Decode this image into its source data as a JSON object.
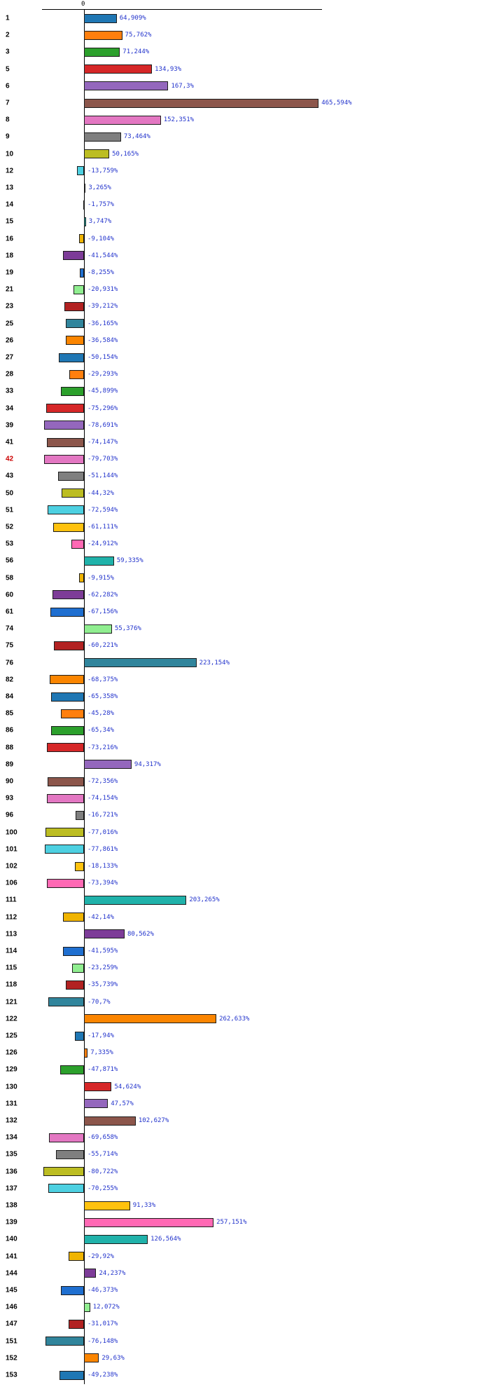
{
  "chart": {
    "background": "#ffffff",
    "axis_color": "#000000",
    "value_label_color": "#2233cc",
    "row_label_color": "#000000",
    "highlight_label_color": "#cc0000"
  },
  "chart_data": {
    "type": "bar",
    "orientation": "horizontal",
    "title": "",
    "xlabel": "",
    "ylabel": "",
    "value_unit": "%",
    "x_axis_ticks": [
      "0"
    ],
    "xlim": [
      -100,
      500
    ],
    "grid": false,
    "legend": false,
    "highlighted_labels": [
      "42"
    ],
    "rows": [
      {
        "label": "1",
        "value": 64.909,
        "display": "64,909%",
        "color": "#1f77b4",
        "highlight": false
      },
      {
        "label": "2",
        "value": 75.762,
        "display": "75,762%",
        "color": "#ff7f0e",
        "highlight": false
      },
      {
        "label": "3",
        "value": 71.244,
        "display": "71,244%",
        "color": "#2ca02c",
        "highlight": false
      },
      {
        "label": "5",
        "value": 134.93,
        "display": "134,93%",
        "color": "#d62728",
        "highlight": false
      },
      {
        "label": "6",
        "value": 167.3,
        "display": "167,3%",
        "color": "#9467bd",
        "highlight": false
      },
      {
        "label": "7",
        "value": 465.594,
        "display": "465,594%",
        "color": "#8c564b",
        "highlight": false
      },
      {
        "label": "8",
        "value": 152.351,
        "display": "152,351%",
        "color": "#e377c2",
        "highlight": false
      },
      {
        "label": "9",
        "value": 73.464,
        "display": "73,464%",
        "color": "#7f7f7f",
        "highlight": false
      },
      {
        "label": "10",
        "value": 50.165,
        "display": "50,165%",
        "color": "#bcbd22",
        "highlight": false
      },
      {
        "label": "12",
        "value": -13.759,
        "display": "-13,759%",
        "color": "#4dd0e1",
        "highlight": false
      },
      {
        "label": "13",
        "value": 3.265,
        "display": "3,265%",
        "color": "#ffc20e",
        "highlight": false
      },
      {
        "label": "14",
        "value": -1.757,
        "display": "-1,757%",
        "color": "#ff69b4",
        "highlight": false
      },
      {
        "label": "15",
        "value": 3.747,
        "display": "3,747%",
        "color": "#20b2aa",
        "highlight": false
      },
      {
        "label": "16",
        "value": -9.104,
        "display": "-9,104%",
        "color": "#f0b400",
        "highlight": false
      },
      {
        "label": "18",
        "value": -41.544,
        "display": "-41,544%",
        "color": "#7d3c98",
        "highlight": false
      },
      {
        "label": "19",
        "value": -8.255,
        "display": "-8,255%",
        "color": "#1f6fd0",
        "highlight": false
      },
      {
        "label": "21",
        "value": -20.931,
        "display": "-20,931%",
        "color": "#90ee90",
        "highlight": false
      },
      {
        "label": "23",
        "value": -39.212,
        "display": "-39,212%",
        "color": "#b22222",
        "highlight": false
      },
      {
        "label": "25",
        "value": -36.165,
        "display": "-36,165%",
        "color": "#31859c",
        "highlight": false
      },
      {
        "label": "26",
        "value": -36.584,
        "display": "-36,584%",
        "color": "#fb8500",
        "highlight": false
      },
      {
        "label": "27",
        "value": -50.154,
        "display": "-50,154%",
        "color": "#1f77b4",
        "highlight": false
      },
      {
        "label": "28",
        "value": -29.293,
        "display": "-29,293%",
        "color": "#ff7f0e",
        "highlight": false
      },
      {
        "label": "33",
        "value": -45.899,
        "display": "-45,899%",
        "color": "#2ca02c",
        "highlight": false
      },
      {
        "label": "34",
        "value": -75.296,
        "display": "-75,296%",
        "color": "#d62728",
        "highlight": false
      },
      {
        "label": "39",
        "value": -78.691,
        "display": "-78,691%",
        "color": "#9467bd",
        "highlight": false
      },
      {
        "label": "41",
        "value": -74.147,
        "display": "-74,147%",
        "color": "#8c564b",
        "highlight": false
      },
      {
        "label": "42",
        "value": -79.703,
        "display": "-79,703%",
        "color": "#e377c2",
        "highlight": true
      },
      {
        "label": "43",
        "value": -51.144,
        "display": "-51,144%",
        "color": "#7f7f7f",
        "highlight": false
      },
      {
        "label": "50",
        "value": -44.32,
        "display": "-44,32%",
        "color": "#bcbd22",
        "highlight": false
      },
      {
        "label": "51",
        "value": -72.594,
        "display": "-72,594%",
        "color": "#4dd0e1",
        "highlight": false
      },
      {
        "label": "52",
        "value": -61.111,
        "display": "-61,111%",
        "color": "#ffc20e",
        "highlight": false
      },
      {
        "label": "53",
        "value": -24.912,
        "display": "-24,912%",
        "color": "#ff69b4",
        "highlight": false
      },
      {
        "label": "56",
        "value": 59.335,
        "display": "59,335%",
        "color": "#20b2aa",
        "highlight": false
      },
      {
        "label": "58",
        "value": -9.915,
        "display": "-9,915%",
        "color": "#f0b400",
        "highlight": false
      },
      {
        "label": "60",
        "value": -62.282,
        "display": "-62,282%",
        "color": "#7d3c98",
        "highlight": false
      },
      {
        "label": "61",
        "value": -67.156,
        "display": "-67,156%",
        "color": "#1f6fd0",
        "highlight": false
      },
      {
        "label": "74",
        "value": 55.376,
        "display": "55,376%",
        "color": "#90ee90",
        "highlight": false
      },
      {
        "label": "75",
        "value": -60.221,
        "display": "-60,221%",
        "color": "#b22222",
        "highlight": false
      },
      {
        "label": "76",
        "value": 223.154,
        "display": "223,154%",
        "color": "#31859c",
        "highlight": false
      },
      {
        "label": "82",
        "value": -68.375,
        "display": "-68,375%",
        "color": "#fb8500",
        "highlight": false
      },
      {
        "label": "84",
        "value": -65.358,
        "display": "-65,358%",
        "color": "#1f77b4",
        "highlight": false
      },
      {
        "label": "85",
        "value": -45.28,
        "display": "-45,28%",
        "color": "#ff7f0e",
        "highlight": false
      },
      {
        "label": "86",
        "value": -65.34,
        "display": "-65,34%",
        "color": "#2ca02c",
        "highlight": false
      },
      {
        "label": "88",
        "value": -73.216,
        "display": "-73,216%",
        "color": "#d62728",
        "highlight": false
      },
      {
        "label": "89",
        "value": 94.317,
        "display": "94,317%",
        "color": "#9467bd",
        "highlight": false
      },
      {
        "label": "90",
        "value": -72.356,
        "display": "-72,356%",
        "color": "#8c564b",
        "highlight": false
      },
      {
        "label": "93",
        "value": -74.154,
        "display": "-74,154%",
        "color": "#e377c2",
        "highlight": false
      },
      {
        "label": "96",
        "value": -16.721,
        "display": "-16,721%",
        "color": "#7f7f7f",
        "highlight": false
      },
      {
        "label": "100",
        "value": -77.016,
        "display": "-77,016%",
        "color": "#bcbd22",
        "highlight": false
      },
      {
        "label": "101",
        "value": -77.861,
        "display": "-77,861%",
        "color": "#4dd0e1",
        "highlight": false
      },
      {
        "label": "102",
        "value": -18.133,
        "display": "-18,133%",
        "color": "#ffc20e",
        "highlight": false
      },
      {
        "label": "106",
        "value": -73.394,
        "display": "-73,394%",
        "color": "#ff69b4",
        "highlight": false
      },
      {
        "label": "111",
        "value": 203.265,
        "display": "203,265%",
        "color": "#20b2aa",
        "highlight": false
      },
      {
        "label": "112",
        "value": -42.14,
        "display": "-42,14%",
        "color": "#f0b400",
        "highlight": false
      },
      {
        "label": "113",
        "value": 80.562,
        "display": "80,562%",
        "color": "#7d3c98",
        "highlight": false
      },
      {
        "label": "114",
        "value": -41.595,
        "display": "-41,595%",
        "color": "#1f6fd0",
        "highlight": false
      },
      {
        "label": "115",
        "value": -23.259,
        "display": "-23,259%",
        "color": "#90ee90",
        "highlight": false
      },
      {
        "label": "118",
        "value": -35.739,
        "display": "-35,739%",
        "color": "#b22222",
        "highlight": false
      },
      {
        "label": "121",
        "value": -70.7,
        "display": "-70,7%",
        "color": "#31859c",
        "highlight": false
      },
      {
        "label": "122",
        "value": 262.633,
        "display": "262,633%",
        "color": "#fb8500",
        "highlight": false
      },
      {
        "label": "125",
        "value": -17.94,
        "display": "-17,94%",
        "color": "#1f77b4",
        "highlight": false
      },
      {
        "label": "126",
        "value": 7.335,
        "display": "7,335%",
        "color": "#ff7f0e",
        "highlight": false
      },
      {
        "label": "129",
        "value": -47.871,
        "display": "-47,871%",
        "color": "#2ca02c",
        "highlight": false
      },
      {
        "label": "130",
        "value": 54.624,
        "display": "54,624%",
        "color": "#d62728",
        "highlight": false
      },
      {
        "label": "131",
        "value": 47.57,
        "display": "47,57%",
        "color": "#9467bd",
        "highlight": false
      },
      {
        "label": "132",
        "value": 102.627,
        "display": "102,627%",
        "color": "#8c564b",
        "highlight": false
      },
      {
        "label": "134",
        "value": -69.658,
        "display": "-69,658%",
        "color": "#e377c2",
        "highlight": false
      },
      {
        "label": "135",
        "value": -55.714,
        "display": "-55,714%",
        "color": "#7f7f7f",
        "highlight": false
      },
      {
        "label": "136",
        "value": -80.722,
        "display": "-80,722%",
        "color": "#bcbd22",
        "highlight": false
      },
      {
        "label": "137",
        "value": -70.255,
        "display": "-70,255%",
        "color": "#4dd0e1",
        "highlight": false
      },
      {
        "label": "138",
        "value": 91.33,
        "display": "91,33%",
        "color": "#ffc20e",
        "highlight": false
      },
      {
        "label": "139",
        "value": 257.151,
        "display": "257,151%",
        "color": "#ff69b4",
        "highlight": false
      },
      {
        "label": "140",
        "value": 126.564,
        "display": "126,564%",
        "color": "#20b2aa",
        "highlight": false
      },
      {
        "label": "141",
        "value": -29.92,
        "display": "-29,92%",
        "color": "#f0b400",
        "highlight": false
      },
      {
        "label": "144",
        "value": 24.237,
        "display": "24,237%",
        "color": "#7d3c98",
        "highlight": false
      },
      {
        "label": "145",
        "value": -46.373,
        "display": "-46,373%",
        "color": "#1f6fd0",
        "highlight": false
      },
      {
        "label": "146",
        "value": 12.072,
        "display": "12,072%",
        "color": "#90ee90",
        "highlight": false
      },
      {
        "label": "147",
        "value": -31.017,
        "display": "-31,017%",
        "color": "#b22222",
        "highlight": false
      },
      {
        "label": "151",
        "value": -76.148,
        "display": "-76,148%",
        "color": "#31859c",
        "highlight": false
      },
      {
        "label": "152",
        "value": 29.63,
        "display": "29,63%",
        "color": "#fb8500",
        "highlight": false
      },
      {
        "label": "153",
        "value": -49.238,
        "display": "-49,238%",
        "color": "#1f77b4",
        "highlight": false
      }
    ]
  }
}
